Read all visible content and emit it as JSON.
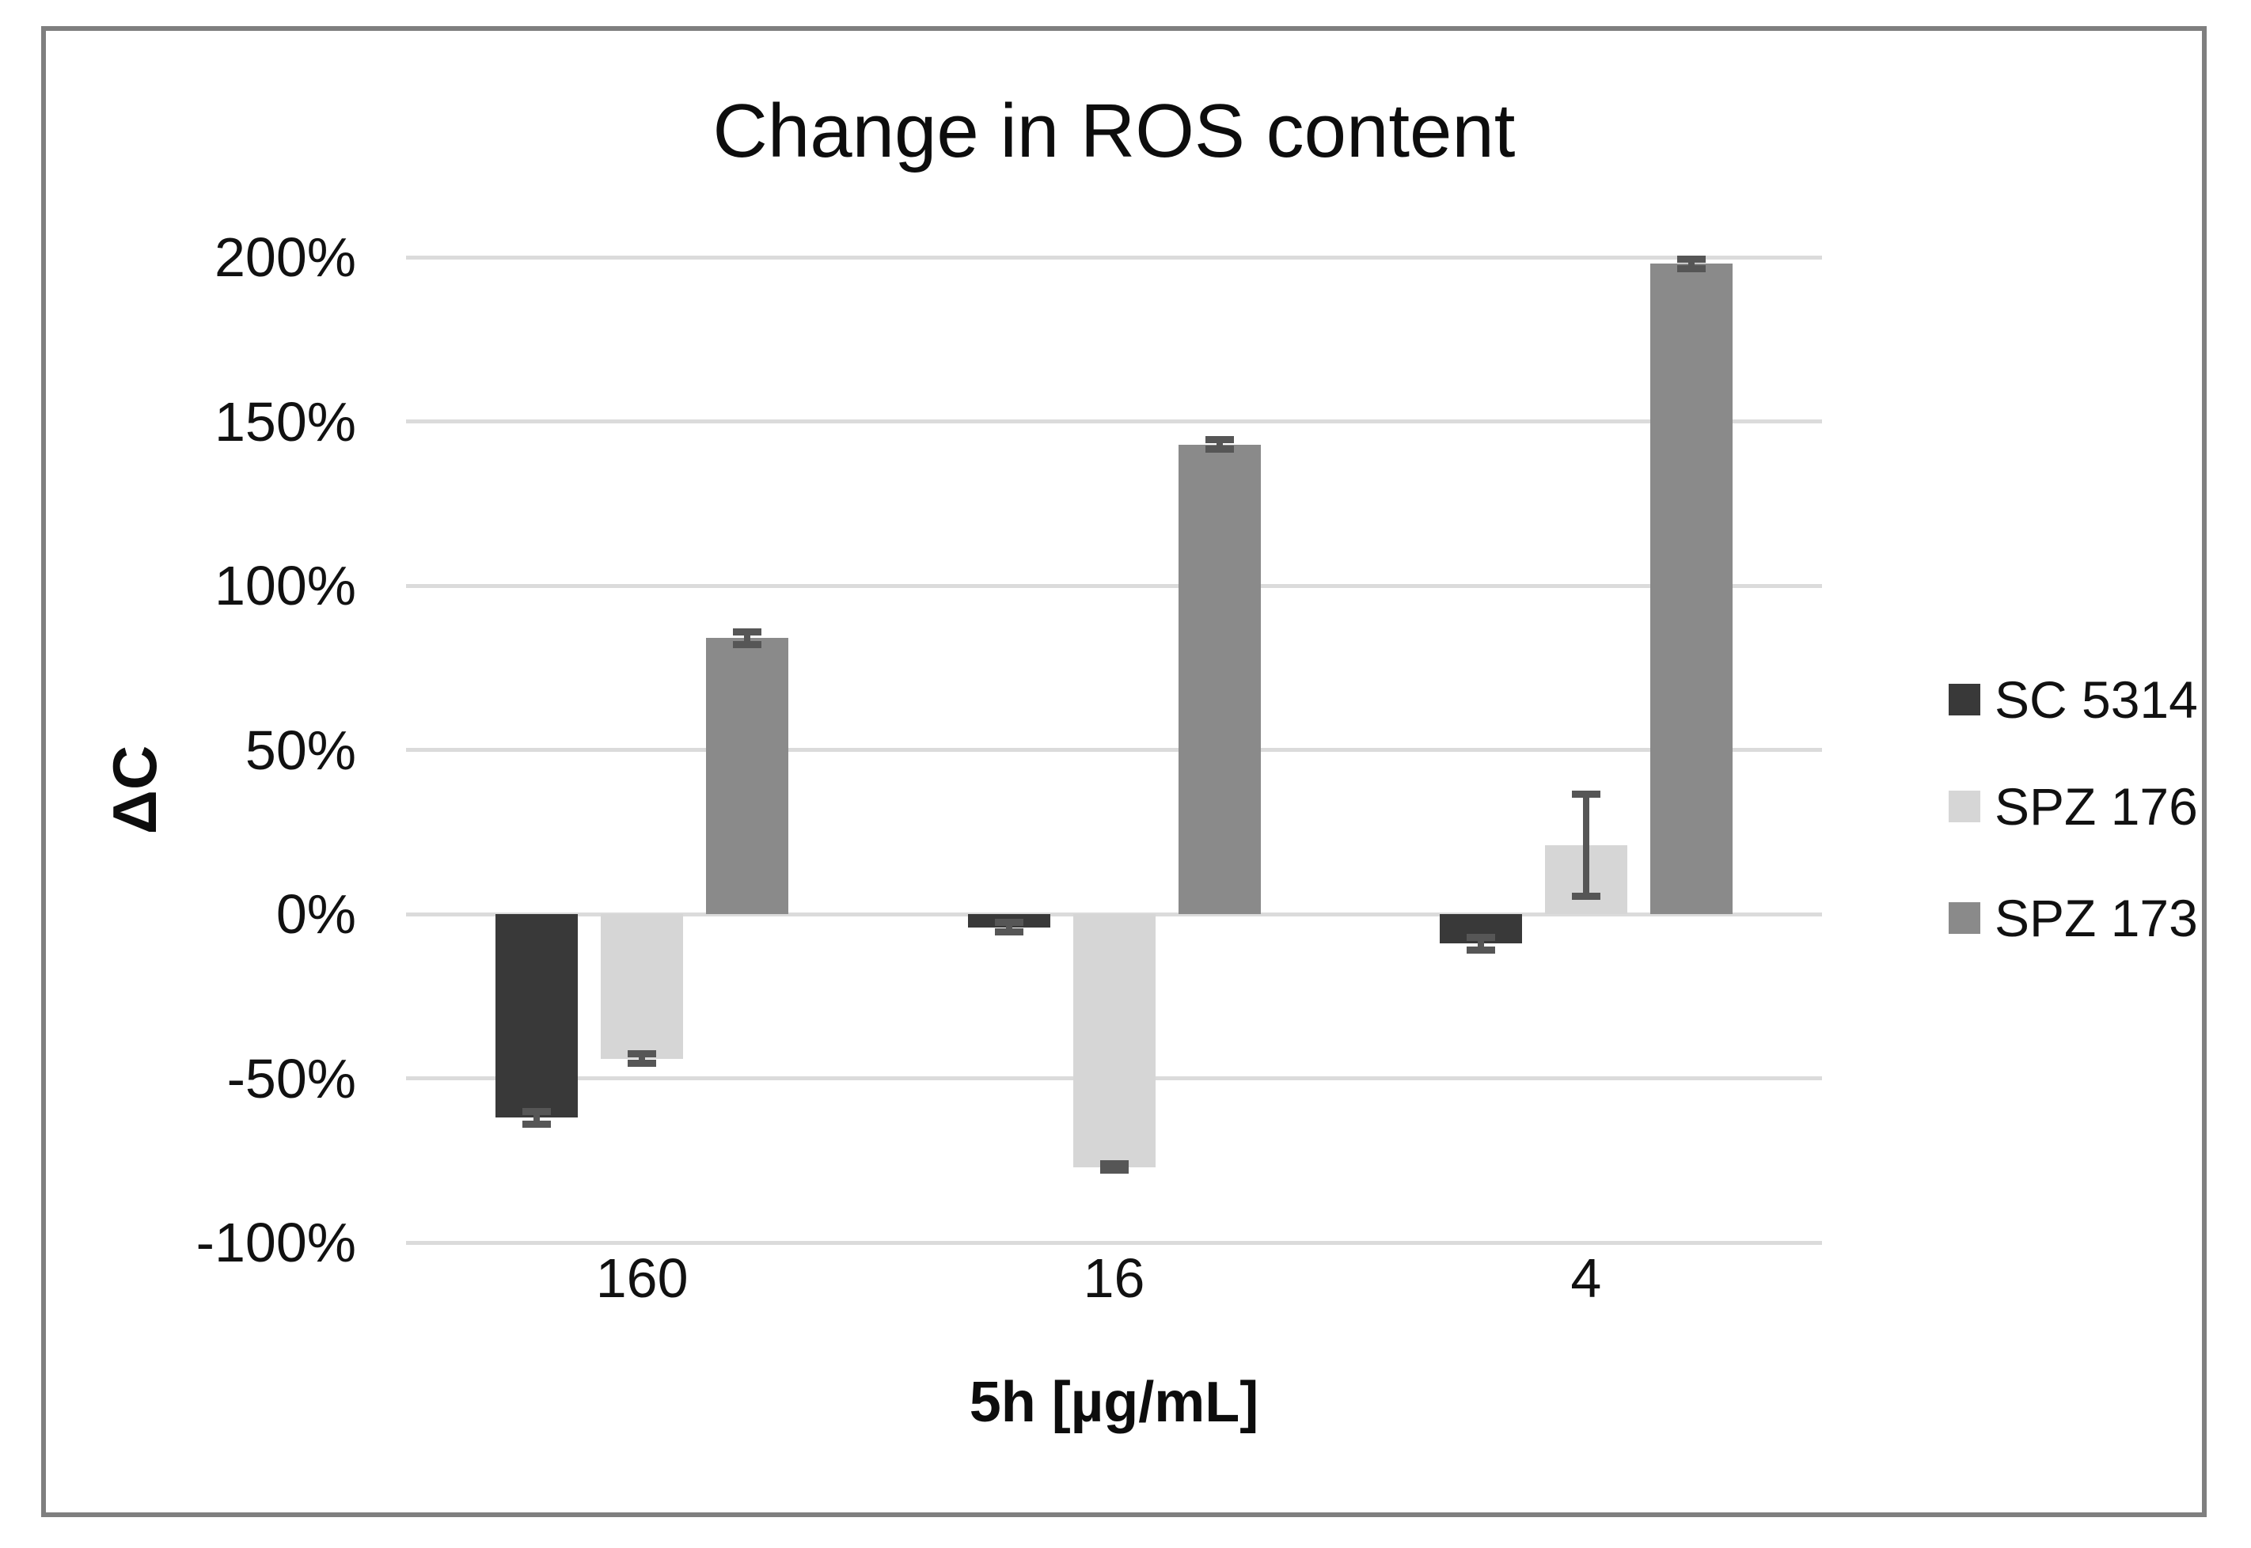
{
  "title": "Change in ROS content",
  "y_axis": {
    "title": "ΔC",
    "tick_labels": [
      "200%",
      "150%",
      "100%",
      "50%",
      "0%",
      "-50%",
      "-100%"
    ],
    "tick_values": [
      200,
      150,
      100,
      50,
      0,
      -50,
      -100
    ]
  },
  "x_axis": {
    "title": "5h [µg/mL]",
    "categories": [
      "160",
      "16",
      "4"
    ]
  },
  "legend": {
    "position": "right",
    "entries": [
      "SC 5314",
      "SPZ 176",
      "SPZ 173"
    ]
  },
  "colors": {
    "sc_5314": "#393939",
    "spz_176": "#d6d6d6",
    "spz_173": "#8a8a8a",
    "error_bar": "#565656",
    "gridline": "#dbdbdb",
    "frame_border": "#7f7f7f",
    "text": "#111111",
    "background": "#ffffff"
  },
  "chart_data": {
    "type": "bar",
    "title": "Change in ROS content",
    "xlabel": "5h [µg/mL]",
    "ylabel": "ΔC",
    "categories": [
      "160",
      "16",
      "4"
    ],
    "series": [
      {
        "name": "SC 5314",
        "color": "#393939",
        "values": [
          -62,
          -4,
          -9
        ],
        "errors": [
          2,
          1.5,
          2
        ]
      },
      {
        "name": "SPZ 176",
        "color": "#d6d6d6",
        "values": [
          -44,
          -77,
          21
        ],
        "errors": [
          1.5,
          1,
          15.5
        ]
      },
      {
        "name": "SPZ 173",
        "color": "#8a8a8a",
        "values": [
          84,
          143,
          198
        ],
        "errors": [
          2,
          1.5,
          1.5
        ]
      }
    ],
    "ylim": [
      -100,
      200
    ],
    "ytick_step": 50,
    "ytick_format": "percent",
    "grid": true,
    "legend_position": "right"
  }
}
